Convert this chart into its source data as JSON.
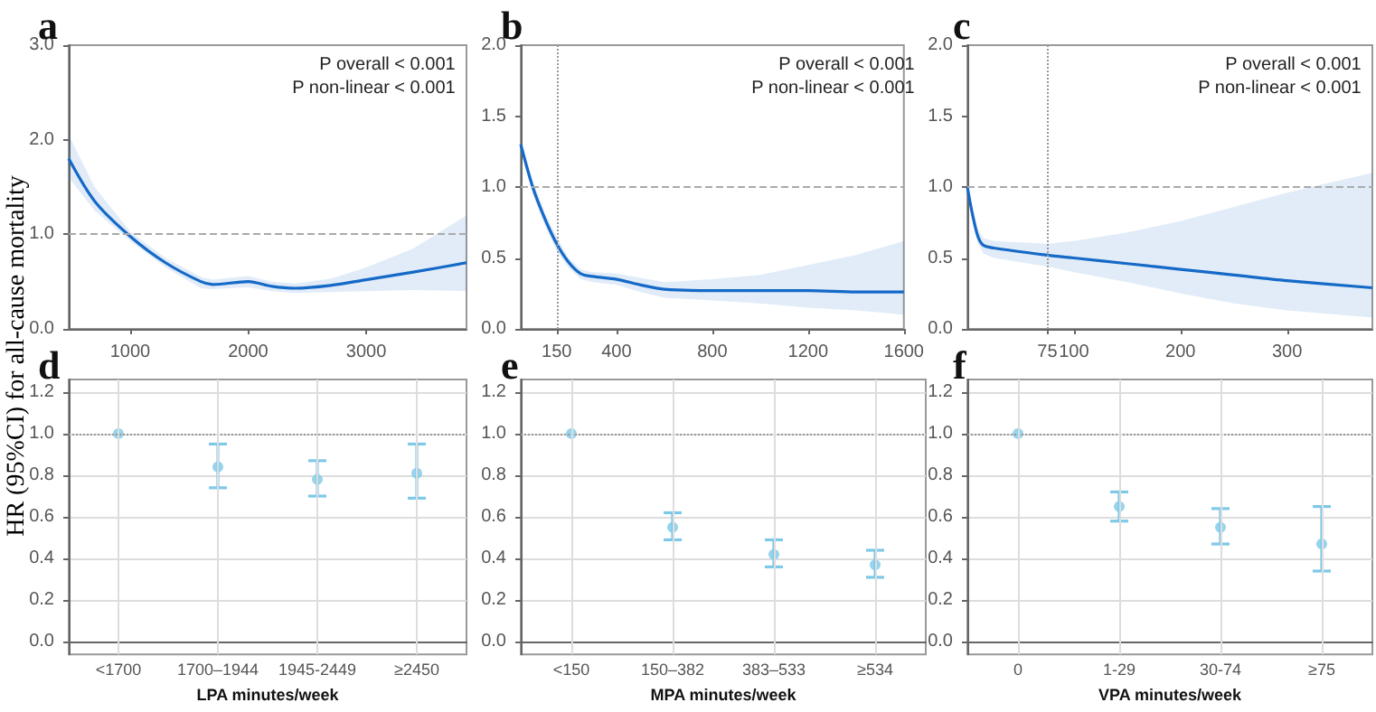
{
  "chart_data": [
    {
      "type": "line",
      "title": "a",
      "ylabel": "HR (95%CI) for all-cause mortality",
      "annotations": [
        "P overall < 0.001",
        "P non-linear < 0.001"
      ],
      "xlim": [
        480,
        3850
      ],
      "xticks": [
        1000,
        2000,
        3000
      ],
      "ylim": [
        0,
        3
      ],
      "yticks": [
        {
          "value": 0,
          "label": "0.0"
        },
        {
          "value": 1,
          "label": "1.0"
        },
        {
          "value": 2,
          "label": "2.0"
        },
        {
          "value": 3,
          "label": "3.0"
        }
      ],
      "grid": false,
      "ref_lines": [
        {
          "axis": "y",
          "value": 1,
          "line_style": "dashed",
          "color": "#aaaaaa"
        }
      ],
      "series": [
        {
          "color": "#1569c7",
          "x": [
            480,
            700,
            1000,
            1300,
            1600,
            1700,
            2000,
            2200,
            2400,
            2700,
            3000,
            3400,
            3850
          ],
          "values": [
            1.8,
            1.35,
            0.98,
            0.7,
            0.5,
            0.47,
            0.5,
            0.45,
            0.43,
            0.46,
            0.52,
            0.6,
            0.7
          ],
          "lower": [
            1.6,
            1.25,
            0.93,
            0.65,
            0.43,
            0.42,
            0.44,
            0.4,
            0.38,
            0.39,
            0.4,
            0.41,
            0.4
          ],
          "upper": [
            2.05,
            1.5,
            1.03,
            0.75,
            0.55,
            0.52,
            0.56,
            0.5,
            0.48,
            0.53,
            0.65,
            0.85,
            1.2
          ]
        }
      ]
    },
    {
      "type": "line",
      "title": "b",
      "annotations": [
        "P overall < 0.001",
        "P non-linear < 0.001"
      ],
      "xlim": [
        0,
        1600
      ],
      "xticks": [
        150,
        400,
        800,
        1200,
        1600
      ],
      "ylim": [
        0,
        2
      ],
      "yticks": [
        {
          "value": 0,
          "label": "0.0"
        },
        0.5,
        {
          "value": 1,
          "label": "1.0"
        },
        1.5,
        {
          "value": 2,
          "label": "2.0"
        }
      ],
      "grid": false,
      "ref_lines": [
        {
          "axis": "y",
          "value": 1,
          "line_style": "dashed",
          "color": "#aaaaaa"
        },
        {
          "axis": "x",
          "value": 150,
          "line_style": "dotted",
          "color": "#999999"
        }
      ],
      "series": [
        {
          "color": "#1569c7",
          "x": [
            0,
            50,
            100,
            150,
            200,
            250,
            300,
            400,
            500,
            600,
            800,
            1000,
            1200,
            1400,
            1600
          ],
          "values": [
            1.3,
            1.0,
            0.78,
            0.6,
            0.47,
            0.39,
            0.37,
            0.35,
            0.31,
            0.28,
            0.27,
            0.27,
            0.27,
            0.26,
            0.26
          ],
          "lower": [
            1.25,
            0.95,
            0.73,
            0.55,
            0.43,
            0.35,
            0.33,
            0.31,
            0.26,
            0.22,
            0.2,
            0.18,
            0.15,
            0.13,
            0.1
          ],
          "upper": [
            1.35,
            1.05,
            0.82,
            0.65,
            0.5,
            0.42,
            0.4,
            0.39,
            0.36,
            0.33,
            0.35,
            0.38,
            0.45,
            0.52,
            0.62
          ]
        }
      ]
    },
    {
      "type": "line",
      "title": "c",
      "annotations": [
        "P overall < 0.001",
        "P non-linear < 0.001"
      ],
      "xlim": [
        0,
        380
      ],
      "xticks": [
        75,
        100,
        200,
        300
      ],
      "ylim": [
        0,
        2
      ],
      "yticks": [
        {
          "value": 0,
          "label": "0.0"
        },
        0.5,
        {
          "value": 1,
          "label": "1.0"
        },
        1.5,
        {
          "value": 2,
          "label": "2.0"
        }
      ],
      "grid": false,
      "ref_lines": [
        {
          "axis": "y",
          "value": 1,
          "line_style": "dashed",
          "color": "#aaaaaa"
        },
        {
          "axis": "x",
          "value": 75,
          "line_style": "dotted",
          "color": "#999999"
        }
      ],
      "series": [
        {
          "color": "#1569c7",
          "x": [
            0,
            5,
            10,
            15,
            25,
            75,
            100,
            150,
            200,
            250,
            300,
            380
          ],
          "values": [
            1.0,
            0.8,
            0.65,
            0.59,
            0.57,
            0.52,
            0.5,
            0.46,
            0.42,
            0.38,
            0.34,
            0.29
          ],
          "lower": [
            1.0,
            0.75,
            0.6,
            0.53,
            0.5,
            0.44,
            0.4,
            0.33,
            0.25,
            0.18,
            0.13,
            0.08
          ],
          "upper": [
            1.0,
            0.85,
            0.7,
            0.64,
            0.62,
            0.6,
            0.62,
            0.68,
            0.76,
            0.86,
            0.96,
            1.1
          ]
        }
      ]
    },
    {
      "type": "scatter",
      "title": "d",
      "xlabel": "LPA minutes/week",
      "categories": [
        "<1700",
        "1700–1944",
        "1945-2449",
        "≥2450"
      ],
      "ylim": [
        -0.06,
        1.26
      ],
      "yticks": [
        {
          "value": 0,
          "label": "0.0"
        },
        0.2,
        0.4,
        0.6,
        0.8,
        {
          "value": 1,
          "label": "1.0"
        },
        1.2
      ],
      "grid": true,
      "ref_lines": [
        {
          "axis": "y",
          "value": 1,
          "line_style": "dotted",
          "color": "#999999"
        }
      ],
      "series": [
        {
          "color": "#7fc9e8",
          "values": [
            1.0,
            0.84,
            0.78,
            0.81
          ],
          "errors": [
            null,
            [
              0.74,
              0.95
            ],
            [
              0.7,
              0.87
            ],
            [
              0.69,
              0.95
            ]
          ]
        }
      ]
    },
    {
      "type": "scatter",
      "title": "e",
      "xlabel": "MPA minutes/week",
      "categories": [
        "<150",
        "150–382",
        "383–533",
        "≥534"
      ],
      "ylim": [
        -0.06,
        1.26
      ],
      "yticks": [
        {
          "value": 0,
          "label": "0.0"
        },
        0.2,
        0.4,
        0.6,
        0.8,
        {
          "value": 1,
          "label": "1.0"
        },
        1.2
      ],
      "grid": true,
      "ref_lines": [
        {
          "axis": "y",
          "value": 1,
          "line_style": "dotted",
          "color": "#999999"
        }
      ],
      "series": [
        {
          "color": "#7fc9e8",
          "values": [
            1.0,
            0.55,
            0.42,
            0.37
          ],
          "errors": [
            null,
            [
              0.49,
              0.62
            ],
            [
              0.36,
              0.49
            ],
            [
              0.31,
              0.44
            ]
          ]
        }
      ]
    },
    {
      "type": "scatter",
      "title": "f",
      "xlabel": "VPA minutes/week",
      "categories": [
        "0",
        "1-29",
        "30-74",
        "≥75"
      ],
      "ylim": [
        -0.06,
        1.26
      ],
      "yticks": [
        {
          "value": 0,
          "label": "0.0"
        },
        0.2,
        0.4,
        0.6,
        0.8,
        {
          "value": 1,
          "label": "1.0"
        },
        1.2
      ],
      "grid": true,
      "ref_lines": [
        {
          "axis": "y",
          "value": 1,
          "line_style": "dotted",
          "color": "#999999"
        }
      ],
      "series": [
        {
          "color": "#7fc9e8",
          "values": [
            1.0,
            0.65,
            0.55,
            0.47
          ],
          "errors": [
            null,
            [
              0.58,
              0.72
            ],
            [
              0.47,
              0.64
            ],
            [
              0.34,
              0.65
            ]
          ]
        }
      ]
    }
  ]
}
